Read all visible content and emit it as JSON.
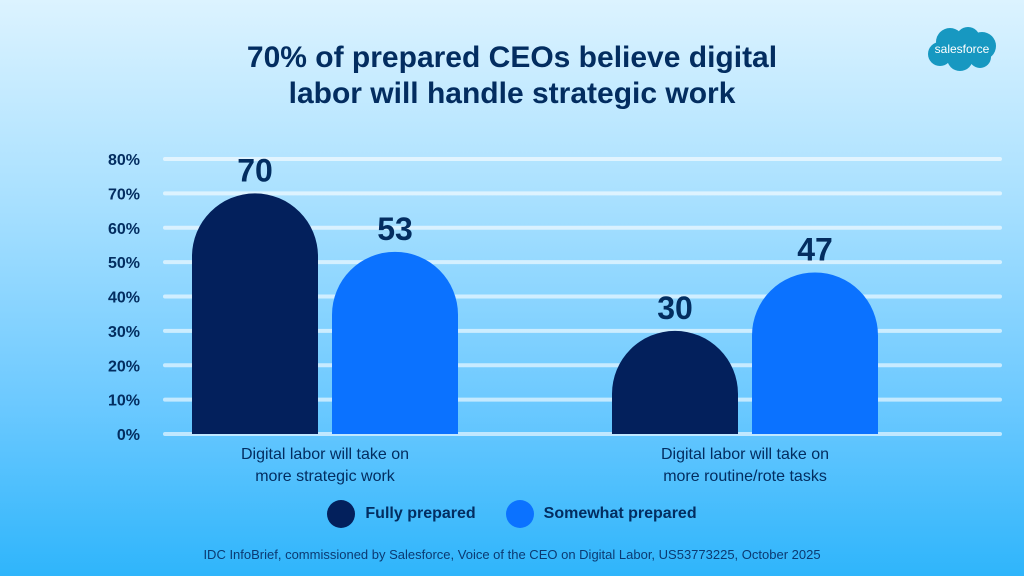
{
  "title_line1": "70% of prepared CEOs believe digital",
  "title_line2": "labor will handle strategic work",
  "logo_text": "salesforce",
  "colors": {
    "fully": "#03205c",
    "somewhat": "#0b72ff",
    "text": "#032d60",
    "logo": "#1798c1"
  },
  "chart_data": {
    "type": "bar",
    "title": "70% of prepared CEOs believe digital labor will handle strategic work",
    "categories": [
      [
        "Digital labor will take on",
        "more strategic work"
      ],
      [
        "Digital labor will take on",
        "more routine/rote tasks"
      ]
    ],
    "series": [
      {
        "name": "Fully prepared",
        "values": [
          70,
          30
        ]
      },
      {
        "name": "Somewhat prepared",
        "values": [
          53,
          47
        ]
      }
    ],
    "yticks": [
      "0%",
      "10%",
      "20%",
      "30%",
      "40%",
      "50%",
      "60%",
      "70%",
      "80%"
    ],
    "ylim": [
      0,
      80
    ],
    "grid": true,
    "legend": "bottom-center"
  },
  "source": "IDC InfoBrief, commissioned by Salesforce, Voice of the CEO on Digital Labor, US53773225, October 2025"
}
